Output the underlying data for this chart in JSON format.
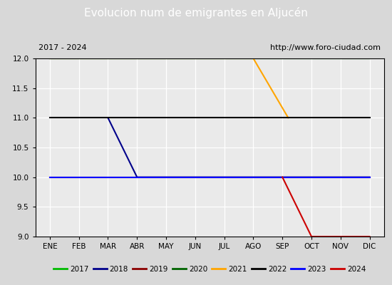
{
  "title": "Evolucion num de emigrantes en Aljucén",
  "subtitle_left": "2017 - 2024",
  "subtitle_right": "http://www.foro-ciudad.com",
  "ylim": [
    9.0,
    12.0
  ],
  "yticks": [
    9.0,
    9.5,
    10.0,
    10.5,
    11.0,
    11.5,
    12.0
  ],
  "months": [
    "ENE",
    "FEB",
    "MAR",
    "ABR",
    "MAY",
    "JUN",
    "JUL",
    "AGO",
    "SEP",
    "OCT",
    "NOV",
    "DIC"
  ],
  "month_positions": [
    1,
    2,
    3,
    4,
    5,
    6,
    7,
    8,
    9,
    10,
    11,
    12
  ],
  "xlim": [
    0.5,
    12.5
  ],
  "background_color": "#d8d8d8",
  "plot_background": "#eaeaea",
  "title_bg": "#4477cc",
  "title_color": "white",
  "series": [
    {
      "year": "2017",
      "color": "#00bb00",
      "data": [
        [
          1,
          12
        ],
        [
          12,
          12
        ]
      ]
    },
    {
      "year": "2018",
      "color": "#00008b",
      "data": [
        [
          3,
          11
        ],
        [
          4,
          10
        ],
        [
          12,
          10
        ]
      ]
    },
    {
      "year": "2019",
      "color": "#8b0000",
      "data": [
        [
          1,
          10
        ],
        [
          12,
          10
        ]
      ]
    },
    {
      "year": "2020",
      "color": "#006400",
      "data": [
        [
          1,
          12
        ],
        [
          12,
          12
        ]
      ]
    },
    {
      "year": "2021",
      "color": "#ffa500",
      "data": [
        [
          1,
          12
        ],
        [
          8,
          12
        ],
        [
          9.2,
          11
        ]
      ]
    },
    {
      "year": "2022",
      "color": "#000000",
      "data": [
        [
          1,
          11
        ],
        [
          12,
          11
        ]
      ]
    },
    {
      "year": "2023",
      "color": "#0000ff",
      "data": [
        [
          1,
          10
        ],
        [
          12,
          10
        ]
      ]
    },
    {
      "year": "2024",
      "color": "#cc0000",
      "data": [
        [
          9,
          10
        ],
        [
          10,
          9
        ],
        [
          12,
          9
        ]
      ]
    }
  ]
}
